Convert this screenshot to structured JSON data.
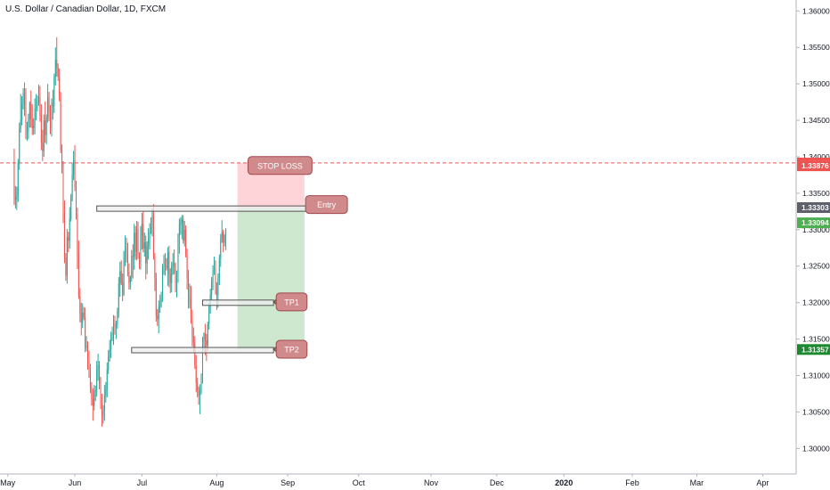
{
  "header": {
    "symbol_title": "U.S. Dollar / Canadian Dollar, 1D, FXCM"
  },
  "colors": {
    "up": "#26a69a",
    "down": "#ef5350",
    "stop_zone": "#ffcdd2",
    "profit_zone": "#c8e6c9",
    "label_fill": "#d08a8c",
    "label_stroke": "#a0484b",
    "pointer_fill": "#9b7766",
    "rect_fill": "#eeeeee",
    "rect_stroke": "#555555",
    "axis_text": "#131722",
    "stop_line": "#ef5350"
  },
  "chart_data": {
    "type": "candlestick",
    "symbol": "USD/CAD",
    "interval": "1D",
    "y_axis": {
      "ylim": [
        1.2965,
        1.3615
      ],
      "ticks": [
        "1.30000",
        "1.30500",
        "1.31000",
        "1.31500",
        "1.32000",
        "1.32500",
        "1.33000",
        "1.33500",
        "1.34000",
        "1.34500",
        "1.35000",
        "1.35500",
        "1.36000"
      ],
      "tick_values": [
        1.3,
        1.305,
        1.31,
        1.315,
        1.32,
        1.325,
        1.33,
        1.335,
        1.34,
        1.345,
        1.35,
        1.355,
        1.36
      ]
    },
    "x_axis": {
      "labels": [
        "May",
        "Jun",
        "Jul",
        "Aug",
        "Sep",
        "Oct",
        "Nov",
        "Dec",
        "2020",
        "Feb",
        "Mar",
        "Apr"
      ],
      "label_positions": [
        -5,
        47,
        99,
        157,
        212,
        267,
        323,
        374,
        426,
        479,
        529,
        580
      ]
    },
    "candles": {
      "base_day": 0,
      "opens": [
        1.3392,
        1.3345,
        1.3341,
        1.3346,
        1.3392,
        1.3438,
        1.3451,
        1.3472,
        1.3488,
        1.3469,
        1.3434,
        1.3435,
        1.3452,
        1.3474,
        1.3451,
        1.3439,
        1.3443,
        1.3466,
        1.347,
        1.3474,
        1.3482,
        1.3458,
        1.3419,
        1.3408,
        1.345,
        1.343,
        1.3454,
        1.3481,
        1.3462,
        1.3439,
        1.3474,
        1.3469,
        1.3509,
        1.3533,
        1.3522,
        1.351,
        1.3482,
        1.3409,
        1.3385,
        1.3323,
        1.3262,
        1.3237,
        1.329,
        1.3285,
        1.3315,
        1.3345,
        1.3376,
        1.3396,
        1.3359,
        1.3321,
        1.3268,
        1.3209,
        1.3186,
        1.3173,
        1.3186,
        1.318,
        1.3138,
        1.314,
        1.312,
        1.3102,
        1.3085,
        1.3068,
        1.3058,
        1.3077,
        1.308,
        1.311,
        1.3114,
        1.3089,
        1.3061,
        1.3044,
        1.3052,
        1.3073,
        1.3081,
        1.3108,
        1.3126,
        1.3136,
        1.3151,
        1.3158,
        1.3171,
        1.3166,
        1.317,
        1.3188,
        1.3226,
        1.3243,
        1.3227,
        1.3211,
        1.3266,
        1.3275,
        1.3266,
        1.3242,
        1.3227,
        1.3235,
        1.3264,
        1.3263,
        1.3296,
        1.327,
        1.3301,
        1.3266,
        1.3254,
        1.3292,
        1.3308,
        1.3274,
        1.3283,
        1.3254,
        1.3278,
        1.3287,
        1.3296,
        1.3304,
        1.332,
        1.3263,
        1.3233,
        1.3182,
        1.3177,
        1.3195,
        1.3198,
        1.3206,
        1.3249,
        1.3258,
        1.3251,
        1.3247,
        1.3269,
        1.3238,
        1.3227,
        1.325,
        1.3254,
        1.3251,
        1.3226,
        1.3242,
        1.329,
        1.3307,
        1.331,
        1.3314,
        1.3285,
        1.33,
        1.3265,
        1.3233,
        1.32,
        1.3208,
        1.318,
        1.3154,
        1.3145,
        1.3114,
        1.309,
        1.308,
        1.3072,
        1.3081,
        1.3101,
        1.3146,
        1.3158,
        1.3149,
        1.3141,
        1.317,
        1.3194,
        1.3211,
        1.3229,
        1.3245,
        1.3247,
        1.322,
        1.321,
        1.3233,
        1.3261,
        1.3287,
        1.3297,
        1.3282,
        1.3292
      ],
      "highs": [
        1.3411,
        1.336,
        1.3359,
        1.3397,
        1.3447,
        1.3486,
        1.3483,
        1.3494,
        1.3502,
        1.3494,
        1.3448,
        1.3459,
        1.3476,
        1.3491,
        1.3472,
        1.3453,
        1.348,
        1.3486,
        1.3484,
        1.3499,
        1.3497,
        1.3472,
        1.3437,
        1.3458,
        1.3476,
        1.3458,
        1.35,
        1.3489,
        1.3471,
        1.348,
        1.3492,
        1.3514,
        1.355,
        1.3564,
        1.3528,
        1.3521,
        1.3489,
        1.3417,
        1.3394,
        1.334,
        1.3268,
        1.3301,
        1.3297,
        1.3331,
        1.3349,
        1.3392,
        1.3408,
        1.3416,
        1.3367,
        1.333,
        1.3285,
        1.322,
        1.32,
        1.3199,
        1.3194,
        1.3193,
        1.3154,
        1.3147,
        1.3134,
        1.3116,
        1.3091,
        1.3082,
        1.3087,
        1.3086,
        1.312,
        1.313,
        1.312,
        1.3098,
        1.3075,
        1.3059,
        1.3087,
        1.3091,
        1.3118,
        1.3135,
        1.3149,
        1.316,
        1.3167,
        1.3183,
        1.3182,
        1.3175,
        1.3193,
        1.3235,
        1.3256,
        1.3258,
        1.324,
        1.3271,
        1.3292,
        1.3289,
        1.3282,
        1.3254,
        1.3237,
        1.3272,
        1.328,
        1.3308,
        1.3305,
        1.3312,
        1.3311,
        1.3269,
        1.3305,
        1.3323,
        1.3326,
        1.3296,
        1.3292,
        1.3284,
        1.3302,
        1.3309,
        1.3317,
        1.3329,
        1.3335,
        1.3268,
        1.3241,
        1.3191,
        1.3203,
        1.3211,
        1.3215,
        1.3253,
        1.3266,
        1.3268,
        1.3261,
        1.3276,
        1.3278,
        1.3247,
        1.3256,
        1.3268,
        1.3273,
        1.3255,
        1.3244,
        1.3295,
        1.3315,
        1.3317,
        1.332,
        1.332,
        1.3312,
        1.3306,
        1.3274,
        1.3245,
        1.3226,
        1.3223,
        1.319,
        1.3166,
        1.3154,
        1.3128,
        1.3097,
        1.3085,
        1.3088,
        1.3103,
        1.3153,
        1.3159,
        1.3171,
        1.3157,
        1.3174,
        1.32,
        1.3219,
        1.3235,
        1.3251,
        1.3263,
        1.3258,
        1.3228,
        1.324,
        1.3266,
        1.3294,
        1.3313,
        1.33,
        1.3294,
        1.3302
      ],
      "lows": [
        1.3334,
        1.3329,
        1.3327,
        1.3338,
        1.3382,
        1.3433,
        1.3443,
        1.3465,
        1.3456,
        1.3424,
        1.3422,
        1.3424,
        1.344,
        1.344,
        1.343,
        1.343,
        1.3431,
        1.345,
        1.3462,
        1.347,
        1.3448,
        1.3409,
        1.3394,
        1.34,
        1.3419,
        1.3417,
        1.3447,
        1.3449,
        1.3431,
        1.3428,
        1.3451,
        1.346,
        1.3498,
        1.351,
        1.3504,
        1.3476,
        1.3405,
        1.3377,
        1.3309,
        1.3254,
        1.323,
        1.3226,
        1.3269,
        1.3274,
        1.3311,
        1.3339,
        1.3368,
        1.3353,
        1.3314,
        1.3246,
        1.3205,
        1.3173,
        1.3155,
        1.3165,
        1.3176,
        1.3132,
        1.3133,
        1.3108,
        1.3097,
        1.3076,
        1.3059,
        1.3038,
        1.3052,
        1.3065,
        1.3071,
        1.3093,
        1.3081,
        1.3054,
        1.303,
        1.3034,
        1.3038,
        1.3063,
        1.307,
        1.3102,
        1.3119,
        1.3124,
        1.3147,
        1.3142,
        1.3156,
        1.315,
        1.3164,
        1.3179,
        1.3208,
        1.3224,
        1.3202,
        1.3209,
        1.325,
        1.3255,
        1.3236,
        1.3218,
        1.3218,
        1.3229,
        1.3233,
        1.3245,
        1.3259,
        1.3258,
        1.326,
        1.3246,
        1.3245,
        1.3273,
        1.3269,
        1.3263,
        1.3232,
        1.3239,
        1.3259,
        1.3273,
        1.3294,
        1.3291,
        1.3259,
        1.3216,
        1.3174,
        1.3168,
        1.3158,
        1.3186,
        1.3193,
        1.3201,
        1.3238,
        1.3237,
        1.3244,
        1.3223,
        1.3221,
        1.3213,
        1.3214,
        1.3238,
        1.3239,
        1.3214,
        1.3207,
        1.3227,
        1.3267,
        1.3293,
        1.3287,
        1.3281,
        1.3277,
        1.3262,
        1.3218,
        1.3192,
        1.3192,
        1.3171,
        1.314,
        1.3132,
        1.3109,
        1.3077,
        1.307,
        1.306,
        1.3047,
        1.3074,
        1.3089,
        1.3135,
        1.3128,
        1.312,
        1.3134,
        1.3163,
        1.3185,
        1.3204,
        1.3217,
        1.3238,
        1.3211,
        1.319,
        1.3193,
        1.3224,
        1.3249,
        1.3282,
        1.3269,
        1.3277,
        1.3272
      ],
      "closes": [
        1.3345,
        1.3341,
        1.3346,
        1.3392,
        1.3438,
        1.3451,
        1.3472,
        1.3488,
        1.3469,
        1.3434,
        1.3435,
        1.3452,
        1.3474,
        1.3451,
        1.3439,
        1.3443,
        1.3466,
        1.347,
        1.3474,
        1.3482,
        1.3458,
        1.3419,
        1.3408,
        1.345,
        1.343,
        1.3454,
        1.3481,
        1.3462,
        1.3439,
        1.3474,
        1.3469,
        1.3509,
        1.3533,
        1.3522,
        1.351,
        1.3482,
        1.3409,
        1.3385,
        1.3323,
        1.3262,
        1.3237,
        1.329,
        1.3285,
        1.3315,
        1.3345,
        1.3376,
        1.3396,
        1.3359,
        1.3321,
        1.3268,
        1.3209,
        1.3186,
        1.3173,
        1.3186,
        1.318,
        1.3138,
        1.314,
        1.312,
        1.3102,
        1.3085,
        1.3068,
        1.3058,
        1.3077,
        1.308,
        1.311,
        1.3114,
        1.3089,
        1.3061,
        1.3044,
        1.3052,
        1.3073,
        1.3081,
        1.3108,
        1.3126,
        1.3136,
        1.3151,
        1.3158,
        1.3171,
        1.3166,
        1.317,
        1.3188,
        1.3226,
        1.3243,
        1.3227,
        1.3211,
        1.3266,
        1.3275,
        1.3266,
        1.3242,
        1.3227,
        1.3235,
        1.3264,
        1.3263,
        1.3296,
        1.327,
        1.3301,
        1.3266,
        1.3254,
        1.3292,
        1.3308,
        1.3274,
        1.3283,
        1.3254,
        1.3278,
        1.3287,
        1.3296,
        1.3304,
        1.332,
        1.3263,
        1.3233,
        1.3182,
        1.3177,
        1.3195,
        1.3198,
        1.3206,
        1.3249,
        1.3258,
        1.3251,
        1.3247,
        1.3269,
        1.3238,
        1.3227,
        1.325,
        1.3254,
        1.3251,
        1.3226,
        1.3242,
        1.329,
        1.3307,
        1.331,
        1.3314,
        1.3285,
        1.33,
        1.3265,
        1.3233,
        1.32,
        1.3208,
        1.318,
        1.3154,
        1.3145,
        1.3114,
        1.309,
        1.308,
        1.3072,
        1.3081,
        1.3101,
        1.3146,
        1.3158,
        1.3149,
        1.3141,
        1.317,
        1.3194,
        1.3211,
        1.3229,
        1.3245,
        1.3247,
        1.322,
        1.321,
        1.3233,
        1.3261,
        1.3287,
        1.3297,
        1.3282,
        1.3292,
        1.33
      ]
    },
    "levels": {
      "stop_loss_line": {
        "value": 1.33915,
        "label": "1.33915"
      },
      "stop_zone_edge": {
        "value": 1.33876,
        "label": "1.33876"
      },
      "entry": {
        "value": 1.33303,
        "label": "1.33303"
      },
      "last_price": {
        "value": 1.33094,
        "label": "1.33094"
      },
      "target": {
        "value": 1.31357,
        "label": "1.31357"
      }
    },
    "zones": {
      "stop": {
        "from": 1.33303,
        "to": 1.33915,
        "x_from": 173,
        "x_to": 225
      },
      "profit": {
        "from": 1.31357,
        "to": 1.33303,
        "x_from": 173,
        "x_to": 225
      }
    },
    "boxes": [
      {
        "name": "entry-box",
        "x_from": 64,
        "x_to": 229,
        "y_from": 1.33326,
        "y_to": 1.33276
      },
      {
        "name": "tp1-box",
        "x_from": 146,
        "x_to": 201,
        "y_from": 1.32035,
        "y_to": 1.31985
      },
      {
        "name": "tp2-box",
        "x_from": 91,
        "x_to": 201,
        "y_from": 1.31385,
        "y_to": 1.31335
      }
    ],
    "annotations": [
      {
        "name": "stop-loss-label",
        "text": "STOP LOSS",
        "x": 206,
        "y": 1.3388
      },
      {
        "name": "entry-label",
        "text": "Entry",
        "x": 242,
        "y": 1.33345,
        "pointer_to": [
          229,
          1.33301
        ]
      },
      {
        "name": "tp1-label",
        "text": "TP1",
        "x": 215,
        "y": 1.3201,
        "pointer_to": [
          201,
          1.3201
        ]
      },
      {
        "name": "tp2-label",
        "text": "TP2",
        "x": 215,
        "y": 1.3136,
        "pointer_to": [
          201,
          1.3136
        ]
      }
    ],
    "x_range": [
      -11,
      606
    ],
    "grid": false
  }
}
